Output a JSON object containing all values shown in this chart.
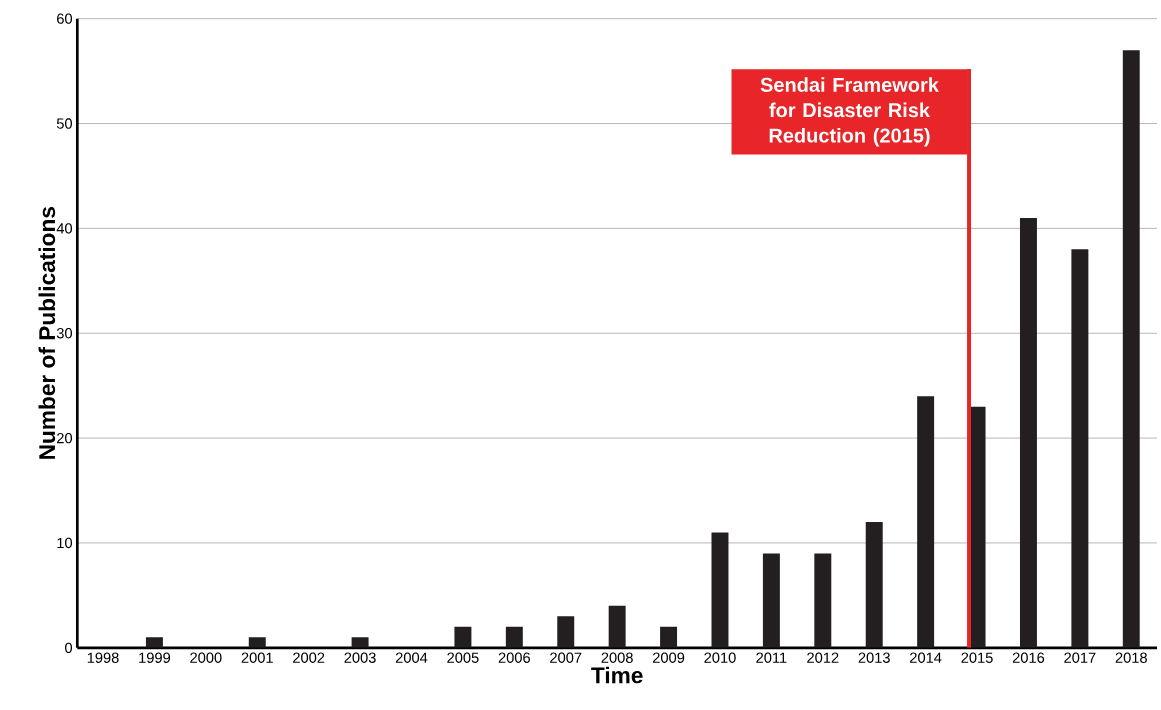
{
  "chart_data": {
    "type": "bar",
    "xlabel": "Time",
    "ylabel": "Number of Publications",
    "categories": [
      "1998",
      "1999",
      "2000",
      "2001",
      "2002",
      "2003",
      "2004",
      "2005",
      "2006",
      "2007",
      "2008",
      "2009",
      "2010",
      "2011",
      "2012",
      "2013",
      "2014",
      "2015",
      "2016",
      "2017",
      "2018"
    ],
    "values": [
      0,
      1,
      0,
      1,
      0,
      1,
      0,
      2,
      2,
      3,
      4,
      2,
      11,
      9,
      9,
      12,
      24,
      23,
      41,
      38,
      57
    ],
    "color": "#231f20",
    "ylim": [
      0,
      60
    ],
    "yticks": [
      0,
      10,
      20,
      30,
      40,
      50,
      60
    ],
    "grid": "y",
    "ref_lines": [
      {
        "axis": "x",
        "value": "2015",
        "label": "Sendai Framework for Disaster Risk Reduction (2015)",
        "color": "#e8262a"
      }
    ]
  }
}
